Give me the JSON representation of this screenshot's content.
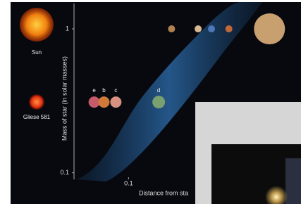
{
  "chart_data": {
    "type": "scatter",
    "x_label": "Distance from sta",
    "y_label": "Mass of star (in solar masses)",
    "xlim": [
      0.022,
      12
    ],
    "ylim": [
      0.09,
      1.5
    ],
    "log_x": true,
    "log_y": true,
    "xticks": [
      0.1
    ],
    "yticks": [
      1,
      0.1
    ],
    "stars": [
      "Sun",
      "Gliese 581"
    ],
    "series": [
      {
        "x": [
          0.0385,
          0.0505,
          0.0703,
          0.231
        ],
        "values": [
          0.31,
          0.31,
          0.31,
          0.31
        ],
        "labels": [
          "e",
          "b",
          "c",
          "d"
        ],
        "colors": [
          "#c45a6a",
          "#d07a3a",
          "#d89080",
          "#7aa070"
        ]
      },
      {
        "x": [
          0.33,
          0.69,
          1.0,
          1.62,
          5.0
        ],
        "values": [
          1,
          1,
          1,
          1,
          1
        ],
        "colors": [
          "#b08050",
          "#d8b890",
          "#4a78b8",
          "#c06838",
          "#c8a070"
        ]
      }
    ]
  }
}
